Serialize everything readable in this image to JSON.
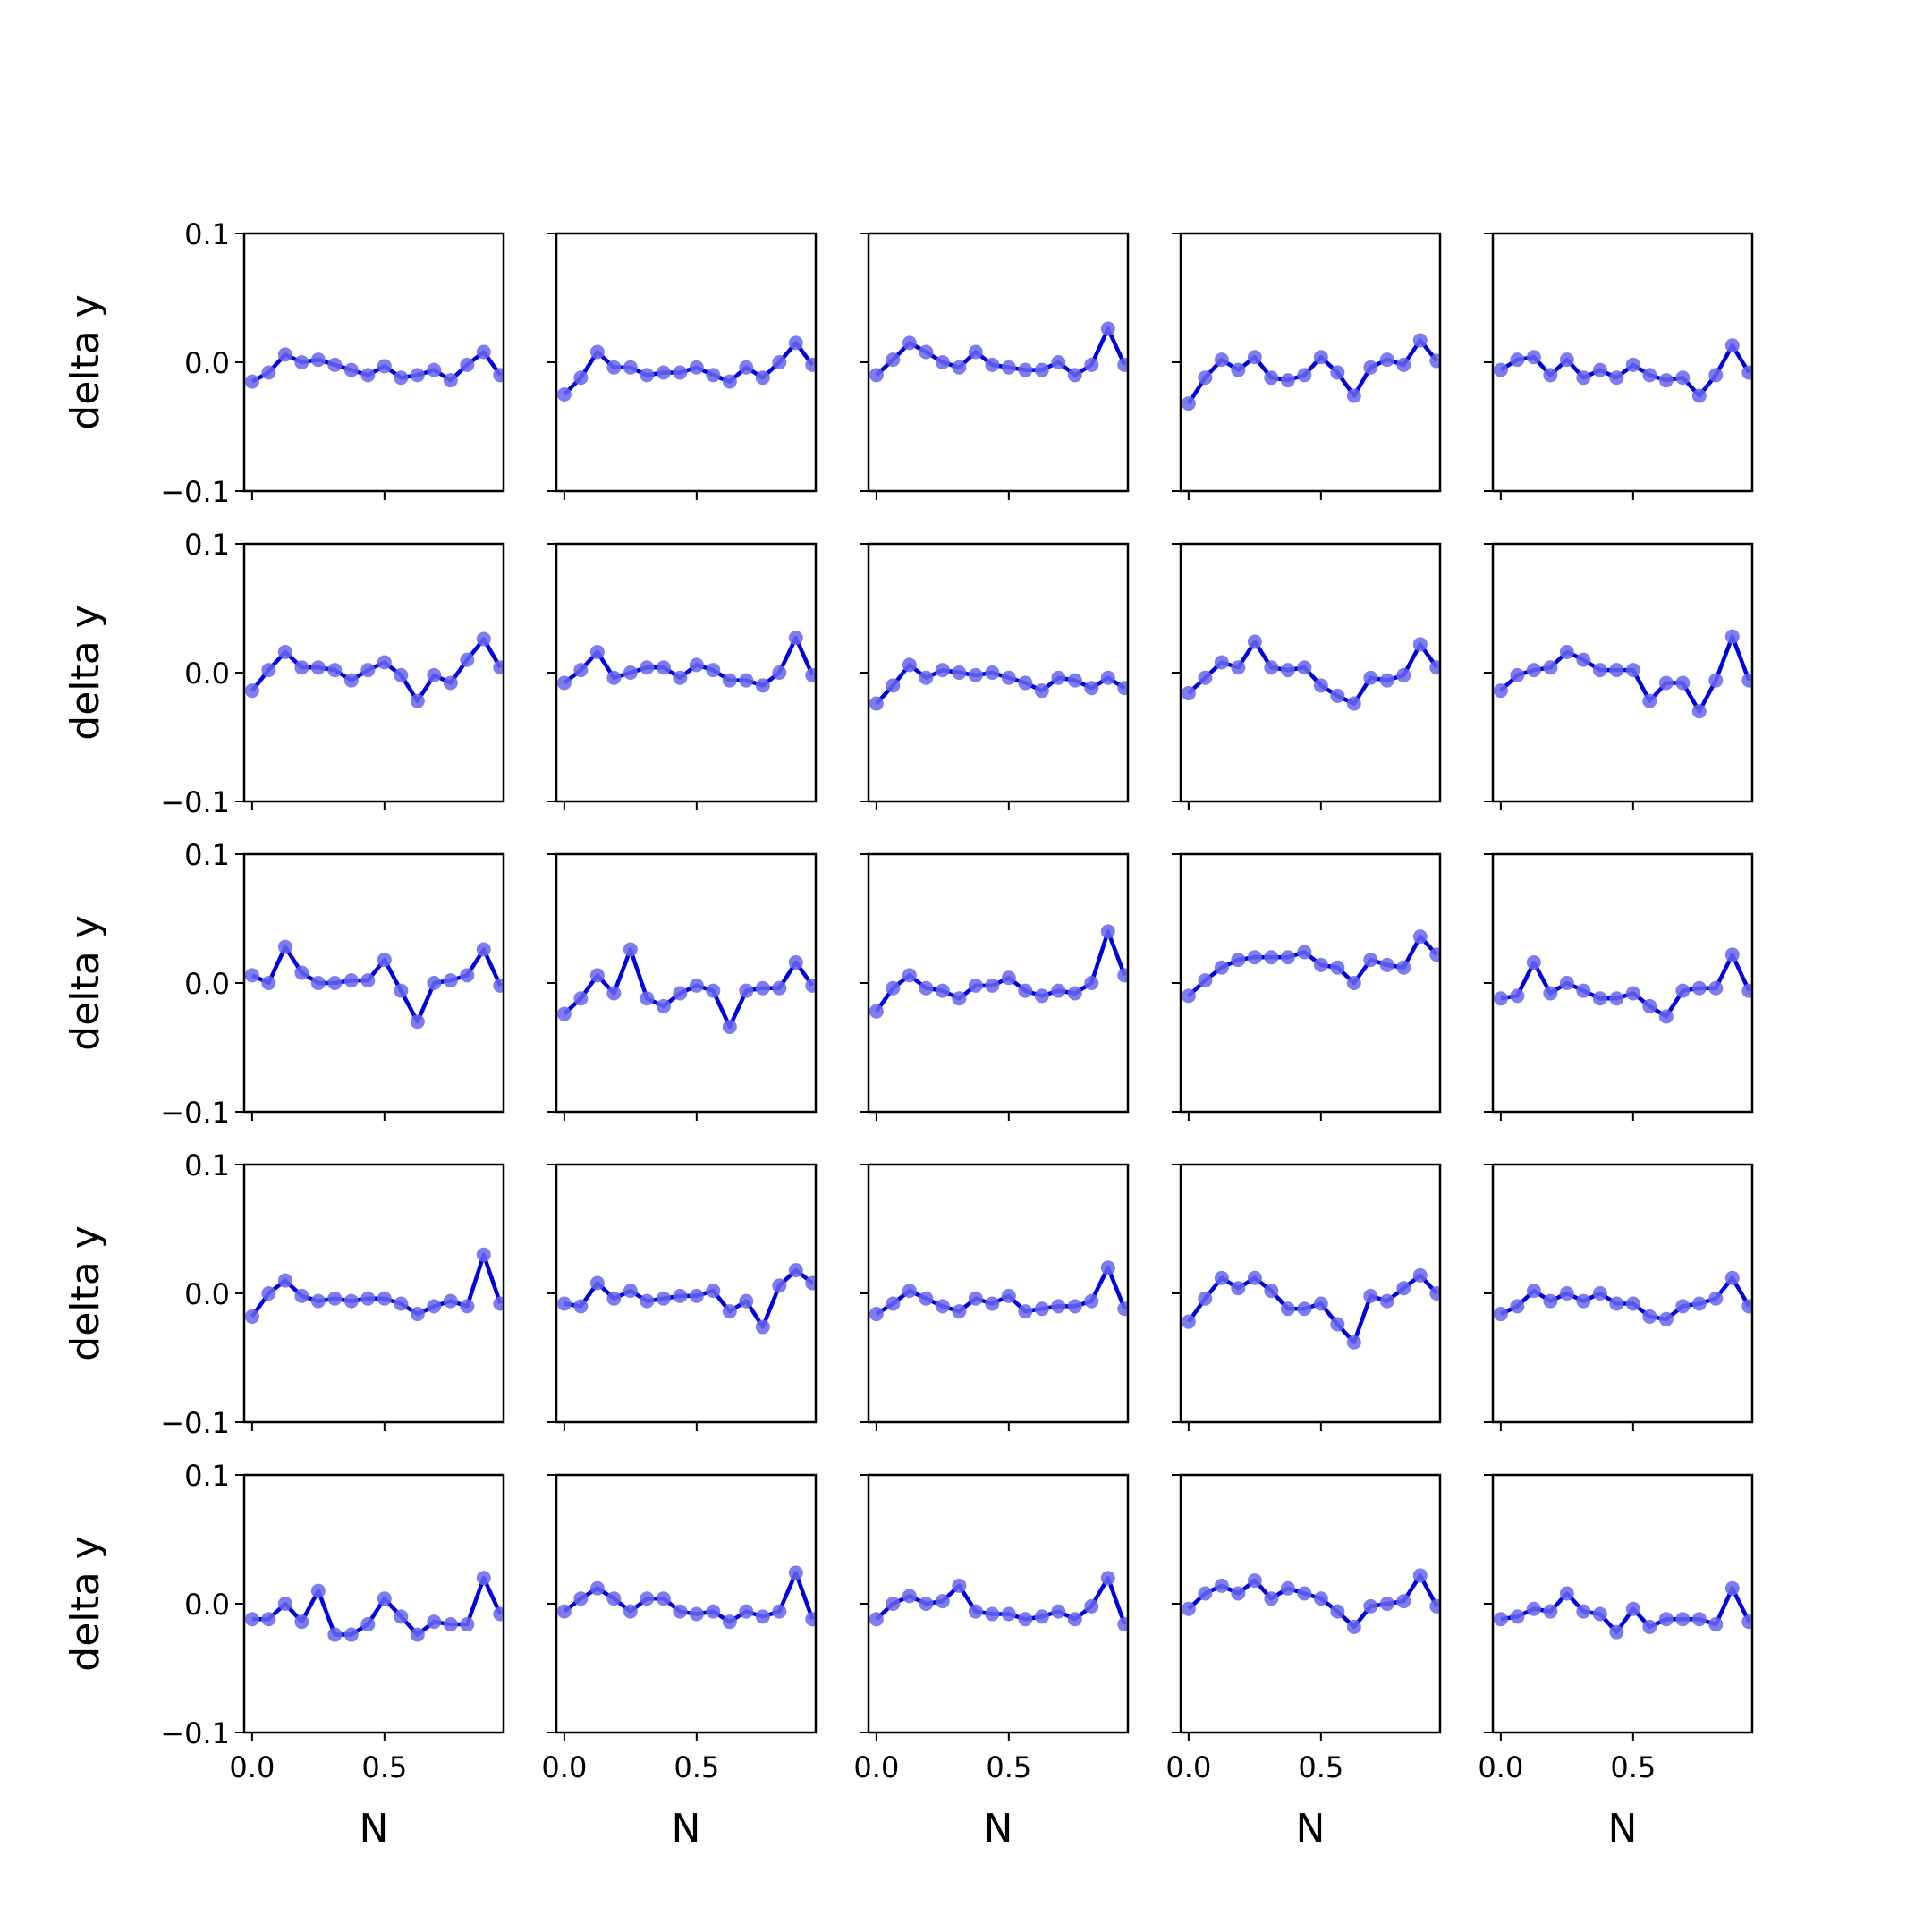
{
  "chart_data": {
    "type": "line",
    "layout": "5x5 grid of small multiples",
    "shared_x_axis": true,
    "shared_y_axis": true,
    "grid": false,
    "legend": "none",
    "xlabel": "N",
    "ylabel": "delta y",
    "xlim": [
      -0.03,
      0.95
    ],
    "ylim": [
      -0.1,
      0.1
    ],
    "xticks": [
      0.0,
      0.5
    ],
    "xtick_labels": [
      "0.0",
      "0.5"
    ],
    "yticks": [
      0.1,
      0.0,
      -0.1
    ],
    "ytick_labels": [
      "0.1",
      "0.0",
      "−0.1"
    ],
    "line_color": "#0000dd",
    "marker_color": "#6666ee",
    "x": [
      0.0,
      0.0625,
      0.125,
      0.1875,
      0.25,
      0.3125,
      0.375,
      0.4375,
      0.5,
      0.5625,
      0.625,
      0.6875,
      0.75,
      0.8125,
      0.875,
      0.9375
    ],
    "panels": [
      {
        "row": 1,
        "col": 1,
        "y": [
          -0.015,
          -0.008,
          0.006,
          0.0,
          0.002,
          -0.002,
          -0.006,
          -0.01,
          -0.003,
          -0.012,
          -0.01,
          -0.006,
          -0.014,
          -0.002,
          0.008,
          -0.01
        ]
      },
      {
        "row": 1,
        "col": 2,
        "y": [
          -0.025,
          -0.012,
          0.008,
          -0.004,
          -0.004,
          -0.01,
          -0.008,
          -0.008,
          -0.004,
          -0.01,
          -0.015,
          -0.004,
          -0.012,
          0.0,
          0.015,
          -0.002
        ]
      },
      {
        "row": 1,
        "col": 3,
        "y": [
          -0.01,
          0.002,
          0.015,
          0.008,
          0.0,
          -0.004,
          0.008,
          -0.002,
          -0.004,
          -0.006,
          -0.006,
          0.0,
          -0.01,
          -0.002,
          0.026,
          -0.002
        ]
      },
      {
        "row": 1,
        "col": 4,
        "y": [
          -0.032,
          -0.012,
          0.002,
          -0.006,
          0.004,
          -0.012,
          -0.014,
          -0.01,
          0.004,
          -0.008,
          -0.026,
          -0.004,
          0.002,
          -0.002,
          0.017,
          0.001
        ]
      },
      {
        "row": 1,
        "col": 5,
        "y": [
          -0.006,
          0.002,
          0.004,
          -0.01,
          0.002,
          -0.012,
          -0.006,
          -0.012,
          -0.002,
          -0.01,
          -0.014,
          -0.012,
          -0.026,
          -0.01,
          0.013,
          -0.008
        ]
      },
      {
        "row": 2,
        "col": 1,
        "y": [
          -0.014,
          0.002,
          0.016,
          0.004,
          0.004,
          0.002,
          -0.006,
          0.002,
          0.008,
          -0.002,
          -0.022,
          -0.002,
          -0.008,
          0.01,
          0.026,
          0.004
        ]
      },
      {
        "row": 2,
        "col": 2,
        "y": [
          -0.008,
          0.002,
          0.016,
          -0.004,
          0.0,
          0.004,
          0.004,
          -0.004,
          0.006,
          0.002,
          -0.006,
          -0.006,
          -0.01,
          0.0,
          0.027,
          -0.002
        ]
      },
      {
        "row": 2,
        "col": 3,
        "y": [
          -0.024,
          -0.01,
          0.006,
          -0.004,
          0.002,
          0.0,
          -0.002,
          0.0,
          -0.004,
          -0.008,
          -0.014,
          -0.004,
          -0.006,
          -0.012,
          -0.004,
          -0.012
        ]
      },
      {
        "row": 2,
        "col": 4,
        "y": [
          -0.016,
          -0.004,
          0.008,
          0.004,
          0.024,
          0.004,
          0.002,
          0.004,
          -0.01,
          -0.018,
          -0.024,
          -0.004,
          -0.006,
          -0.002,
          0.022,
          0.004
        ]
      },
      {
        "row": 2,
        "col": 5,
        "y": [
          -0.014,
          -0.002,
          0.002,
          0.004,
          0.016,
          0.01,
          0.002,
          0.002,
          0.002,
          -0.022,
          -0.008,
          -0.008,
          -0.03,
          -0.006,
          0.028,
          -0.006
        ]
      },
      {
        "row": 3,
        "col": 1,
        "y": [
          0.006,
          0.0,
          0.028,
          0.008,
          0.0,
          0.0,
          0.002,
          0.002,
          0.018,
          -0.006,
          -0.03,
          0.0,
          0.002,
          0.006,
          0.026,
          -0.002
        ]
      },
      {
        "row": 3,
        "col": 2,
        "y": [
          -0.024,
          -0.012,
          0.006,
          -0.008,
          0.026,
          -0.012,
          -0.018,
          -0.008,
          -0.002,
          -0.006,
          -0.034,
          -0.006,
          -0.004,
          -0.004,
          0.016,
          -0.002
        ]
      },
      {
        "row": 3,
        "col": 3,
        "y": [
          -0.022,
          -0.004,
          0.006,
          -0.004,
          -0.006,
          -0.012,
          -0.002,
          -0.002,
          0.004,
          -0.006,
          -0.01,
          -0.006,
          -0.008,
          0.0,
          0.04,
          0.006
        ]
      },
      {
        "row": 3,
        "col": 4,
        "y": [
          -0.01,
          0.002,
          0.012,
          0.018,
          0.02,
          0.02,
          0.02,
          0.024,
          0.014,
          0.012,
          0.0,
          0.018,
          0.014,
          0.012,
          0.036,
          0.022
        ]
      },
      {
        "row": 3,
        "col": 5,
        "y": [
          -0.012,
          -0.01,
          0.016,
          -0.008,
          0.0,
          -0.006,
          -0.012,
          -0.012,
          -0.008,
          -0.018,
          -0.026,
          -0.006,
          -0.004,
          -0.004,
          0.022,
          -0.006
        ]
      },
      {
        "row": 4,
        "col": 1,
        "y": [
          -0.018,
          0.0,
          0.01,
          -0.002,
          -0.006,
          -0.004,
          -0.006,
          -0.004,
          -0.004,
          -0.008,
          -0.016,
          -0.01,
          -0.006,
          -0.01,
          0.03,
          -0.008
        ]
      },
      {
        "row": 4,
        "col": 2,
        "y": [
          -0.008,
          -0.01,
          0.008,
          -0.004,
          0.002,
          -0.006,
          -0.004,
          -0.002,
          -0.002,
          0.002,
          -0.014,
          -0.006,
          -0.026,
          0.006,
          0.018,
          0.008
        ]
      },
      {
        "row": 4,
        "col": 3,
        "y": [
          -0.016,
          -0.008,
          0.002,
          -0.004,
          -0.01,
          -0.014,
          -0.004,
          -0.008,
          -0.002,
          -0.014,
          -0.012,
          -0.01,
          -0.01,
          -0.006,
          0.02,
          -0.012
        ]
      },
      {
        "row": 4,
        "col": 4,
        "y": [
          -0.022,
          -0.004,
          0.012,
          0.004,
          0.012,
          0.002,
          -0.012,
          -0.012,
          -0.008,
          -0.024,
          -0.038,
          -0.002,
          -0.006,
          0.004,
          0.014,
          0.0
        ]
      },
      {
        "row": 4,
        "col": 5,
        "y": [
          -0.016,
          -0.01,
          0.002,
          -0.006,
          0.0,
          -0.006,
          0.0,
          -0.008,
          -0.008,
          -0.018,
          -0.02,
          -0.01,
          -0.008,
          -0.004,
          0.012,
          -0.01
        ]
      },
      {
        "row": 5,
        "col": 1,
        "y": [
          -0.012,
          -0.012,
          0.0,
          -0.014,
          0.01,
          -0.024,
          -0.024,
          -0.016,
          0.004,
          -0.01,
          -0.024,
          -0.014,
          -0.016,
          -0.016,
          0.02,
          -0.008
        ]
      },
      {
        "row": 5,
        "col": 2,
        "y": [
          -0.006,
          0.004,
          0.012,
          0.004,
          -0.006,
          0.004,
          0.004,
          -0.006,
          -0.008,
          -0.006,
          -0.014,
          -0.006,
          -0.01,
          -0.006,
          0.024,
          -0.012
        ]
      },
      {
        "row": 5,
        "col": 3,
        "y": [
          -0.012,
          0.0,
          0.006,
          0.0,
          0.002,
          0.014,
          -0.006,
          -0.008,
          -0.008,
          -0.012,
          -0.01,
          -0.006,
          -0.012,
          -0.002,
          0.02,
          -0.016
        ]
      },
      {
        "row": 5,
        "col": 4,
        "y": [
          -0.004,
          0.008,
          0.014,
          0.008,
          0.018,
          0.004,
          0.012,
          0.008,
          0.004,
          -0.006,
          -0.018,
          -0.002,
          0.0,
          0.002,
          0.022,
          -0.002
        ]
      },
      {
        "row": 5,
        "col": 5,
        "y": [
          -0.012,
          -0.01,
          -0.004,
          -0.006,
          0.008,
          -0.006,
          -0.008,
          -0.022,
          -0.004,
          -0.018,
          -0.012,
          -0.012,
          -0.012,
          -0.016,
          0.012,
          -0.014
        ]
      }
    ]
  }
}
